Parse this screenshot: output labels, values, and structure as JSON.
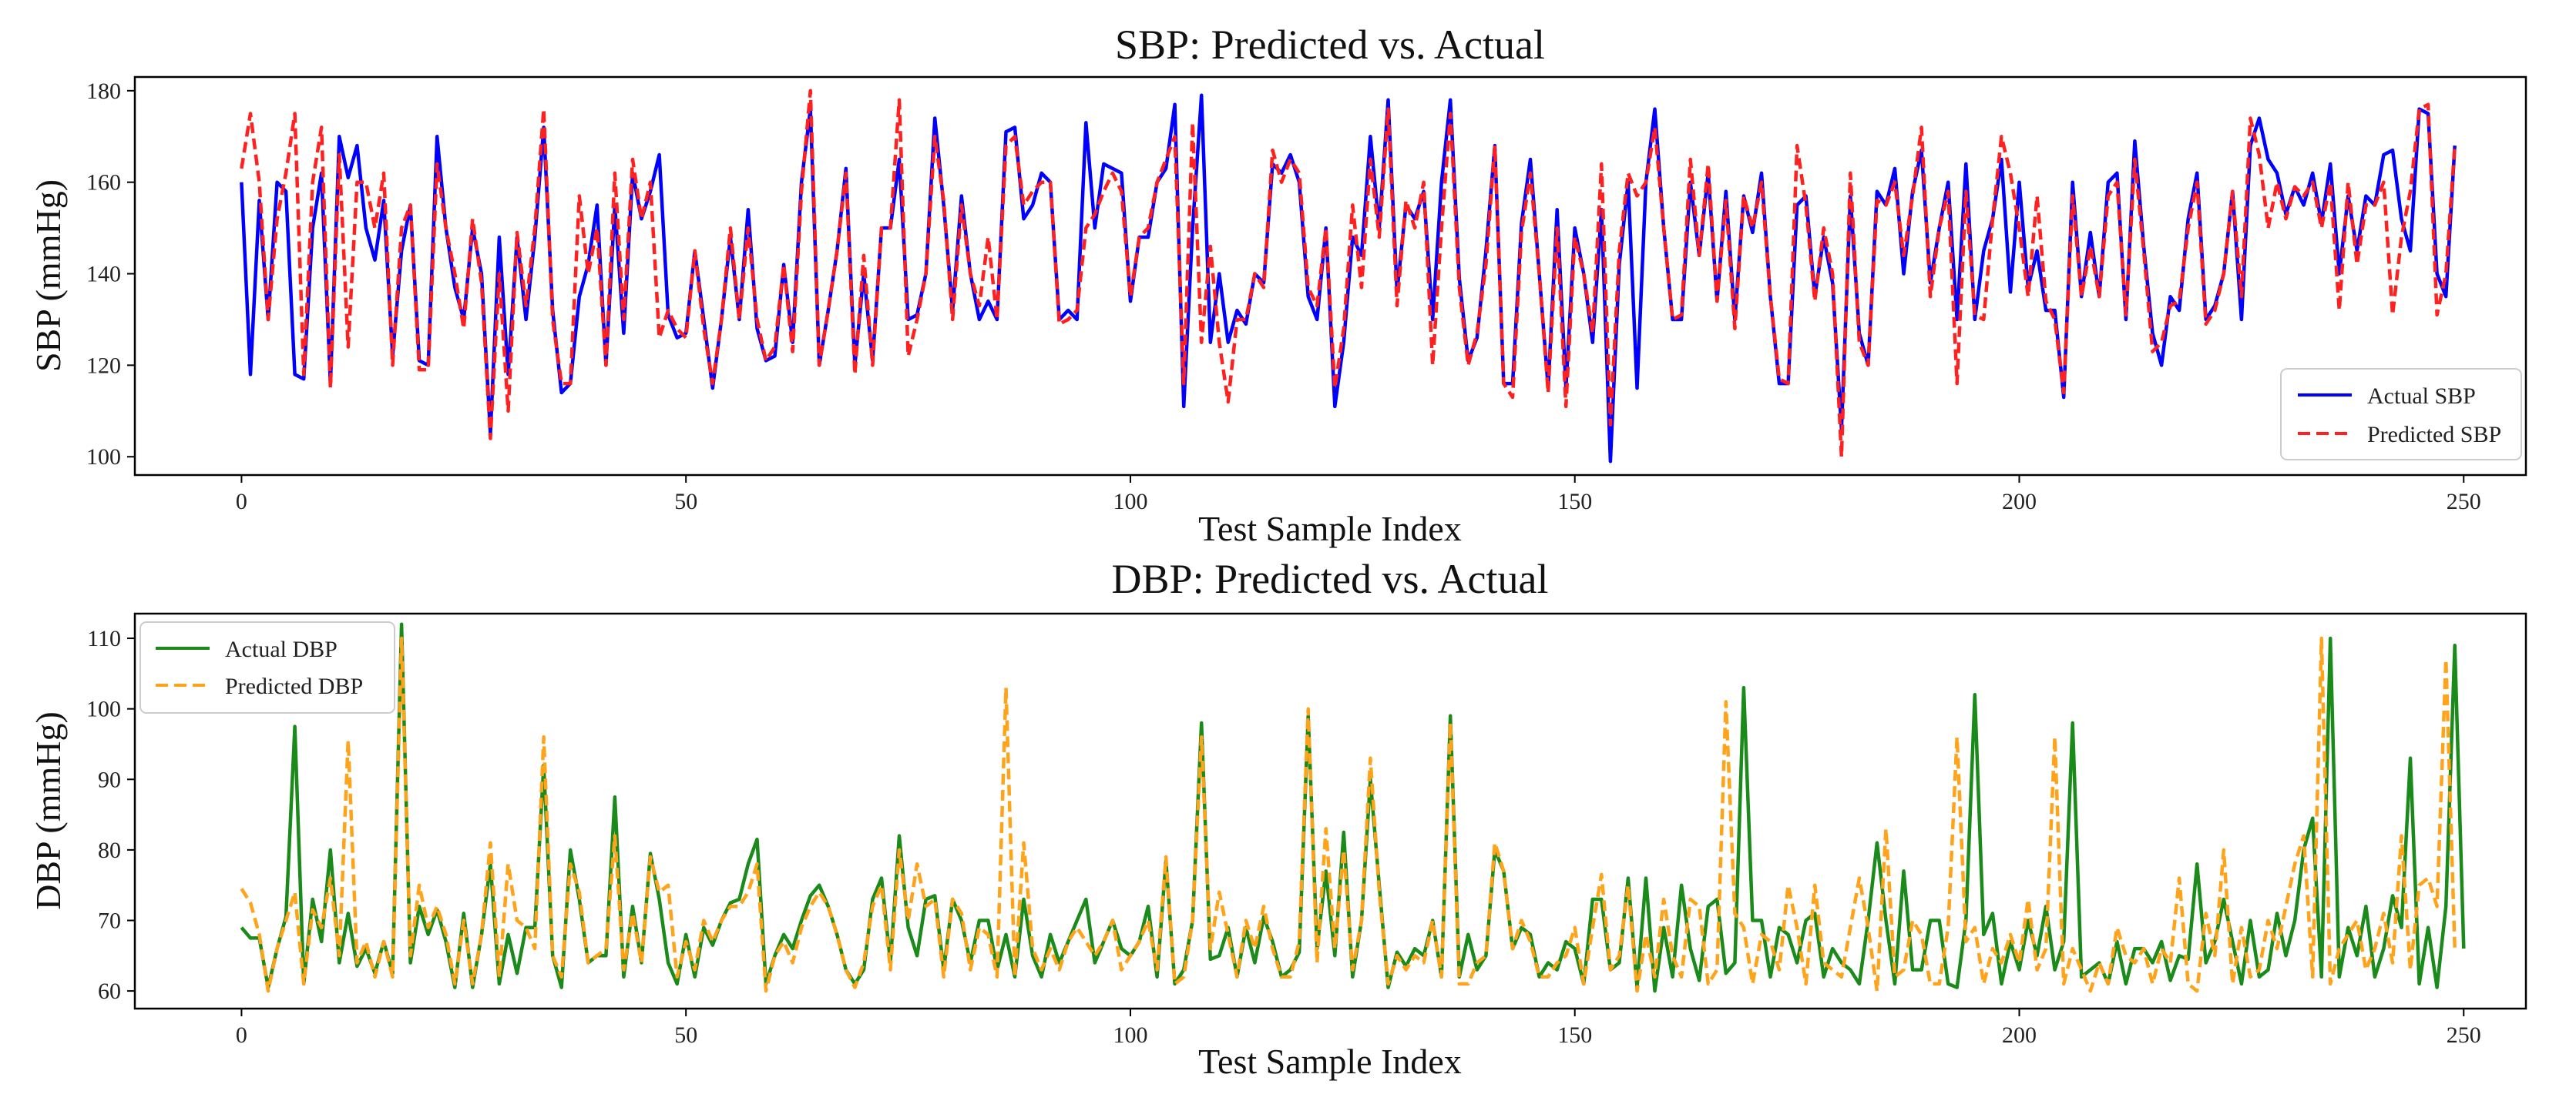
{
  "chart_data": [
    {
      "type": "line",
      "title": "SBP: Predicted vs. Actual",
      "xlabel": "Test Sample Index",
      "ylabel": "SBP (mmHg)",
      "xlim": [
        -12,
        257
      ],
      "ylim": [
        96,
        183
      ],
      "xticks": [
        0,
        50,
        100,
        150,
        200,
        250
      ],
      "yticks": [
        100,
        120,
        140,
        160,
        180
      ],
      "grid": false,
      "legend_position": "lower-right",
      "x_start": 0,
      "series": [
        {
          "name": "Actual SBP",
          "color": "#0000ff",
          "style": "solid",
          "values": [
            160,
            118,
            156,
            130,
            160,
            158,
            118,
            117,
            150,
            162,
            116,
            170,
            161,
            168,
            150,
            143,
            156,
            122,
            145,
            155,
            121,
            120,
            170,
            150,
            137,
            130,
            150,
            140,
            105,
            148,
            118,
            148,
            130,
            148,
            172,
            132,
            114,
            116,
            135,
            142,
            155,
            120,
            155,
            127,
            162,
            152,
            158,
            166,
            131,
            126,
            127,
            145,
            130,
            115,
            130,
            148,
            130,
            154,
            128,
            121,
            122,
            142,
            125,
            160,
            176,
            120,
            132,
            145,
            163,
            120,
            140,
            121,
            150,
            150,
            165,
            130,
            131,
            140,
            174,
            155,
            132,
            157,
            140,
            130,
            134,
            130,
            171,
            172,
            152,
            155,
            162,
            160,
            130,
            132,
            130,
            173,
            150,
            164,
            163,
            162,
            134,
            148,
            148,
            160,
            163,
            177,
            111,
            150,
            179,
            125,
            140,
            125,
            132,
            129,
            140,
            138,
            164,
            162,
            166,
            160,
            135,
            130,
            150,
            111,
            125,
            148,
            144,
            170,
            150,
            178,
            136,
            155,
            152,
            158,
            130,
            160,
            178,
            139,
            121,
            126,
            145,
            168,
            116,
            116,
            151,
            165,
            140,
            115,
            154,
            115,
            150,
            140,
            125,
            154,
            99,
            142,
            160,
            115,
            160,
            176,
            150,
            130,
            130,
            160,
            144,
            162,
            134,
            158,
            130,
            157,
            149,
            162,
            135,
            116,
            116,
            155,
            157,
            135,
            148,
            138,
            106,
            157,
            127,
            120,
            158,
            155,
            163,
            140,
            158,
            167,
            138,
            150,
            160,
            130,
            164,
            130,
            145,
            152,
            165,
            136,
            160,
            137,
            145,
            132,
            132,
            113,
            160,
            135,
            149,
            135,
            160,
            162,
            130,
            169,
            146,
            127,
            120,
            135,
            132,
            152,
            162,
            130,
            133,
            140,
            158,
            130,
            168,
            174,
            165,
            162,
            153,
            159,
            155,
            162,
            151,
            164,
            140,
            157,
            145,
            157,
            155,
            166,
            167,
            152,
            145,
            176,
            175,
            140,
            135,
            168
          ]
        },
        {
          "name": "Predicted SBP",
          "color": "#ff2020",
          "style": "dashed",
          "values": [
            163,
            175,
            160,
            130,
            152,
            162,
            175,
            118,
            160,
            172,
            115,
            166,
            124,
            160,
            160,
            150,
            162,
            120,
            150,
            155,
            119,
            119,
            164,
            150,
            140,
            128,
            152,
            138,
            104,
            140,
            110,
            149,
            133,
            150,
            176,
            130,
            116,
            116,
            157,
            140,
            150,
            120,
            162,
            130,
            165,
            152,
            160,
            126,
            132,
            128,
            126,
            145,
            128,
            116,
            130,
            150,
            130,
            150,
            130,
            121,
            124,
            142,
            123,
            158,
            180,
            120,
            132,
            145,
            162,
            118,
            144,
            120,
            150,
            150,
            178,
            122,
            130,
            140,
            170,
            156,
            130,
            155,
            140,
            133,
            148,
            130,
            168,
            170,
            155,
            158,
            160,
            160,
            129,
            130,
            132,
            150,
            153,
            158,
            162,
            158,
            135,
            148,
            150,
            160,
            165,
            170,
            116,
            173,
            125,
            146,
            125,
            112,
            130,
            130,
            140,
            137,
            167,
            160,
            165,
            162,
            137,
            133,
            150,
            115,
            128,
            155,
            137,
            165,
            148,
            176,
            133,
            156,
            150,
            160,
            120,
            150,
            175,
            137,
            120,
            127,
            142,
            168,
            116,
            113,
            149,
            162,
            140,
            114,
            150,
            111,
            148,
            140,
            127,
            164,
            107,
            145,
            162,
            157,
            160,
            172,
            150,
            130,
            131,
            165,
            144,
            164,
            134,
            156,
            128,
            157,
            150,
            160,
            135,
            117,
            116,
            168,
            155,
            134,
            150,
            140,
            100,
            162,
            125,
            120,
            156,
            155,
            160,
            144,
            157,
            172,
            135,
            150,
            158,
            116,
            158,
            131,
            130,
            152,
            170,
            162,
            150,
            135,
            157,
            134,
            130,
            114,
            157,
            135,
            146,
            135,
            157,
            160,
            131,
            165,
            145,
            123,
            125,
            133,
            134,
            150,
            160,
            129,
            132,
            140,
            158,
            135,
            174,
            166,
            150,
            160,
            152,
            159,
            157,
            160,
            150,
            160,
            132,
            160,
            142,
            155,
            155,
            160,
            131,
            148,
            158,
            176,
            177,
            131,
            140,
            168
          ]
        }
      ]
    },
    {
      "type": "line",
      "title": "DBP: Predicted vs. Actual",
      "xlabel": "Test Sample Index",
      "ylabel": "DBP (mmHg)",
      "xlim": [
        -12,
        257
      ],
      "ylim": [
        57.5,
        113.5
      ],
      "xticks": [
        0,
        50,
        100,
        150,
        200,
        250
      ],
      "yticks": [
        60,
        70,
        80,
        90,
        100,
        110
      ],
      "grid": false,
      "legend_position": "upper-left",
      "x_start": 0,
      "series": [
        {
          "name": "Actual DBP",
          "color": "#1a8a1a",
          "style": "solid",
          "values": [
            69,
            67.5,
            67.5,
            60.5,
            66,
            70.5,
            97.5,
            61,
            73,
            67,
            80,
            64,
            71,
            63.5,
            66,
            62.5,
            67,
            62.5,
            112,
            64,
            72,
            68,
            71.5,
            67,
            60.5,
            71,
            60.5,
            68,
            78,
            61,
            68,
            62.5,
            69,
            69,
            92,
            65,
            60.5,
            80,
            73,
            64,
            65,
            65,
            87.5,
            62,
            72,
            64,
            79.5,
            73,
            64,
            61,
            68,
            62,
            69,
            66.5,
            70,
            72.5,
            73,
            78,
            81.5,
            61,
            65,
            68,
            66,
            70,
            73.5,
            75,
            72,
            68,
            63,
            61,
            63,
            73,
            76,
            64,
            82,
            69,
            65,
            73,
            73.5,
            63,
            73,
            70,
            64,
            70,
            70,
            63,
            68,
            62,
            73,
            65,
            62,
            68,
            64,
            67,
            70,
            73,
            64,
            67,
            70,
            66,
            65,
            67,
            72,
            62,
            78.5,
            61,
            63,
            70,
            98,
            64.5,
            65,
            69,
            62,
            69,
            64,
            70.5,
            67,
            62,
            63,
            65.5,
            99,
            66,
            77,
            65,
            82.5,
            62,
            70,
            90,
            75,
            60.5,
            65.5,
            63.5,
            66,
            65,
            70,
            62,
            99,
            62,
            68,
            63,
            65,
            80,
            77,
            66,
            69,
            68,
            62,
            64,
            63,
            67,
            66,
            61,
            73,
            73,
            63,
            64,
            76,
            60.5,
            76,
            60,
            69,
            62,
            75,
            66,
            61.5,
            72,
            73,
            62.5,
            64,
            103,
            70,
            70,
            62,
            69,
            68,
            64,
            70,
            71,
            62,
            66,
            64,
            63,
            61,
            70,
            81,
            70,
            61,
            77,
            63,
            63,
            70,
            70,
            61,
            60.5,
            70,
            102,
            68,
            71,
            61,
            67,
            63,
            70,
            65,
            72,
            63,
            67,
            98,
            62,
            63,
            64,
            61,
            67,
            61,
            66,
            66,
            64,
            67,
            61.5,
            65,
            64.5,
            78,
            64,
            67,
            73,
            67,
            61,
            70,
            62,
            63,
            71,
            65,
            70,
            80,
            84.5,
            62,
            110,
            62,
            69,
            65,
            72,
            62,
            66,
            73.5,
            69,
            93,
            61,
            69,
            60.5,
            72,
            109,
            66
          ]
        },
        {
          "name": "Predicted DBP",
          "color": "#ffa31a",
          "style": "dashed",
          "values": [
            74.5,
            72.5,
            68,
            60,
            66,
            70,
            74,
            61,
            71.5,
            69,
            76,
            65,
            95.5,
            64,
            67,
            62,
            67,
            62,
            110,
            65,
            75,
            69,
            72,
            68,
            61,
            70,
            61,
            68,
            81,
            62,
            78,
            70,
            69,
            66,
            96,
            65,
            62,
            78,
            74,
            64,
            65,
            66,
            82,
            63,
            71,
            64,
            79,
            74,
            75,
            62,
            67,
            63,
            70,
            67,
            70,
            72,
            72,
            74,
            78,
            60,
            65,
            67,
            64,
            69,
            72,
            74,
            72,
            68,
            63,
            60.5,
            64,
            72,
            75,
            63,
            80,
            70,
            78,
            72,
            73,
            62,
            73,
            71,
            63,
            69,
            68,
            62,
            103,
            62,
            81,
            66,
            63,
            66,
            63,
            67,
            69,
            67,
            65,
            67,
            70,
            63,
            65,
            67,
            70,
            63,
            79,
            61,
            62,
            70,
            96,
            66,
            74,
            68,
            62,
            70,
            66,
            72,
            66,
            62,
            62,
            67,
            100,
            64,
            83,
            66,
            80,
            63,
            70,
            93,
            74,
            61,
            65,
            63,
            65,
            64,
            70,
            62,
            98,
            61,
            61,
            64,
            65,
            81,
            77,
            66,
            70,
            67,
            62,
            62,
            64,
            65,
            69,
            61,
            69,
            76.5,
            63,
            65,
            75,
            60,
            68,
            62,
            73,
            65,
            62,
            73,
            72,
            61,
            63,
            101,
            71,
            69,
            61,
            68,
            67,
            63,
            75,
            69,
            61,
            75,
            64,
            63,
            62,
            69,
            76,
            69,
            60,
            83,
            62,
            63,
            70,
            68,
            61,
            61,
            69,
            96,
            67,
            69,
            61,
            66,
            64,
            68,
            64,
            73,
            63,
            66,
            96,
            61,
            66,
            63,
            60,
            64,
            61,
            69,
            65,
            64,
            66,
            61,
            66,
            64,
            76,
            61,
            60,
            71,
            65,
            80,
            61,
            69,
            62,
            63,
            70,
            66,
            72,
            78,
            82,
            62,
            110,
            61,
            66,
            68,
            70,
            63,
            66,
            71,
            64,
            82,
            63,
            75,
            76,
            72,
            107,
            66
          ]
        }
      ]
    }
  ]
}
